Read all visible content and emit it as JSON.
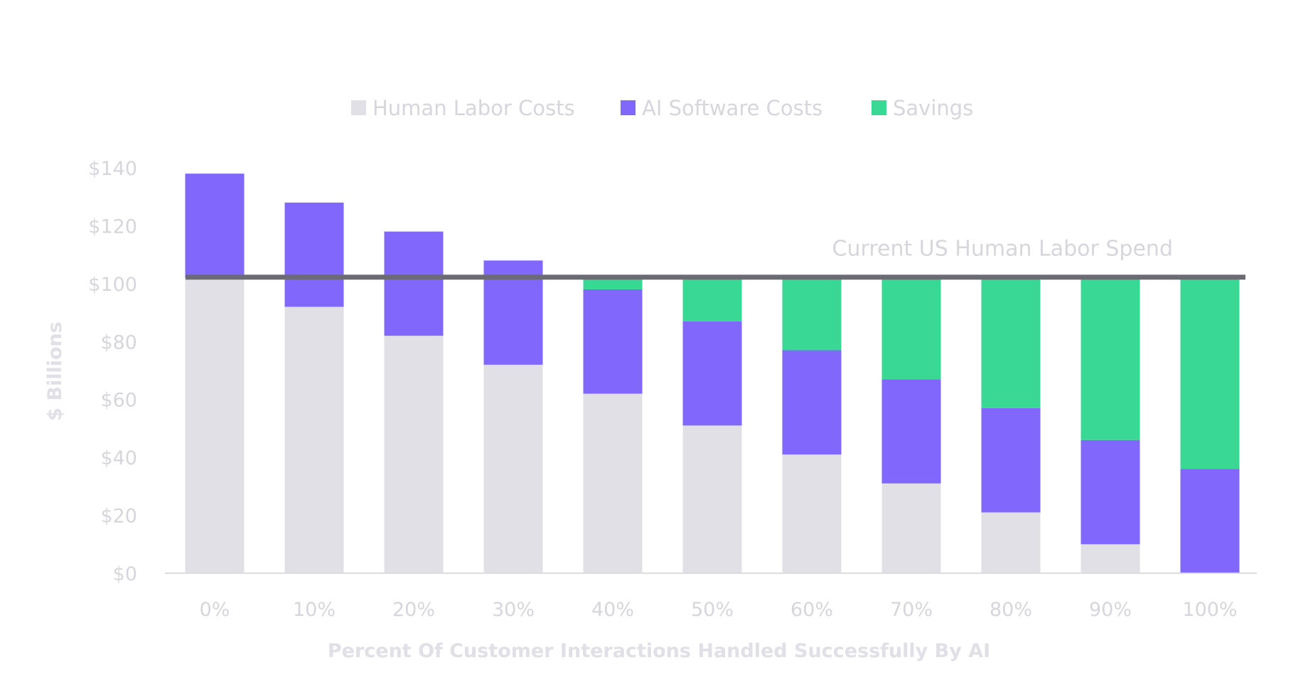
{
  "chart_data": {
    "type": "bar",
    "stacked": true,
    "title": "",
    "xlabel": "Percent Of Customer Interactions Handled Successfully By AI",
    "ylabel": "$ Billions",
    "ylim": [
      0,
      140
    ],
    "y_ticks": [
      "$0",
      "$20",
      "$40",
      "$60",
      "$80",
      "$100",
      "$120",
      "$140"
    ],
    "y_tick_values": [
      0,
      20,
      40,
      60,
      80,
      100,
      120,
      140
    ],
    "categories": [
      "0%",
      "10%",
      "20%",
      "30%",
      "40%",
      "50%",
      "60%",
      "70%",
      "80%",
      "90%",
      "100%"
    ],
    "series": [
      {
        "name": "Human Labor Costs",
        "color": "#e0e0e6",
        "values": [
          102,
          92,
          82,
          72,
          62,
          51,
          41,
          31,
          21,
          10,
          0
        ]
      },
      {
        "name": "AI Software Costs",
        "color": "#8267fd",
        "values": [
          36,
          36,
          36,
          36,
          36,
          36,
          36,
          36,
          36,
          36,
          36
        ]
      },
      {
        "name": "Savings",
        "color": "#39d894",
        "values": [
          0,
          0,
          0,
          0,
          4,
          15,
          25,
          35,
          45,
          56,
          66
        ]
      }
    ],
    "reference_line": {
      "label": "Current US Human Labor Spend",
      "value": 102,
      "color": "#6b6b73"
    },
    "legend_position": "top-center",
    "grid": false
  }
}
